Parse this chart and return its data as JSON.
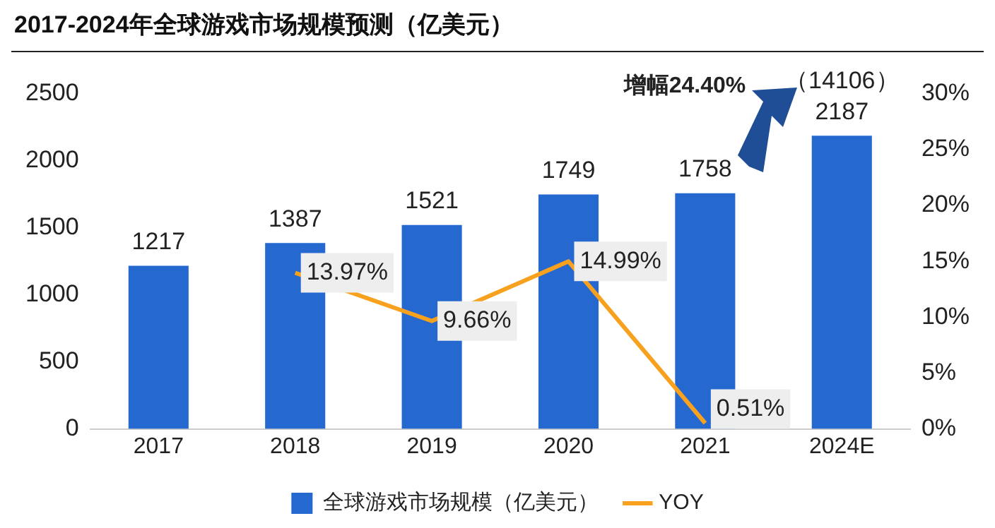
{
  "chart_data": {
    "type": "bar",
    "title": "2017-2024年全球游戏市场规模预测（亿美元）",
    "categories": [
      "2017",
      "2018",
      "2019",
      "2020",
      "2021",
      "2024E"
    ],
    "series": [
      {
        "name": "全球游戏市场规模（亿美元）",
        "color": "#2468d0",
        "values": [
          1217,
          1387,
          1521,
          1749,
          1758,
          2187
        ],
        "value_labels": [
          "1217",
          "1387",
          "1521",
          "1749",
          "1758",
          "2187"
        ]
      },
      {
        "name": "YOY",
        "type": "line",
        "axis": "y2",
        "color": "#f7a11e",
        "values": [
          null,
          13.97,
          9.66,
          14.99,
          0.51,
          null
        ],
        "value_labels": [
          null,
          "13.97%",
          "9.66%",
          "14.99%",
          "0.51%",
          null
        ]
      }
    ],
    "ylim": [
      0,
      2500
    ],
    "yticks": [
      0,
      500,
      1000,
      1500,
      2000,
      2500
    ],
    "y2lim": [
      0,
      30
    ],
    "y2ticks": [
      {
        "value": 0,
        "label": "0%"
      },
      {
        "value": 5,
        "label": "5%"
      },
      {
        "value": 10,
        "label": "10%"
      },
      {
        "value": 15,
        "label": "15%"
      },
      {
        "value": 20,
        "label": "20%"
      },
      {
        "value": 25,
        "label": "25%"
      },
      {
        "value": 30,
        "label": "30%"
      }
    ],
    "marker": "none",
    "legend": "bottom",
    "annotations": [
      {
        "text": "（14106）",
        "x": "2024E",
        "y": 2187
      },
      "增幅24.40%"
    ]
  }
}
